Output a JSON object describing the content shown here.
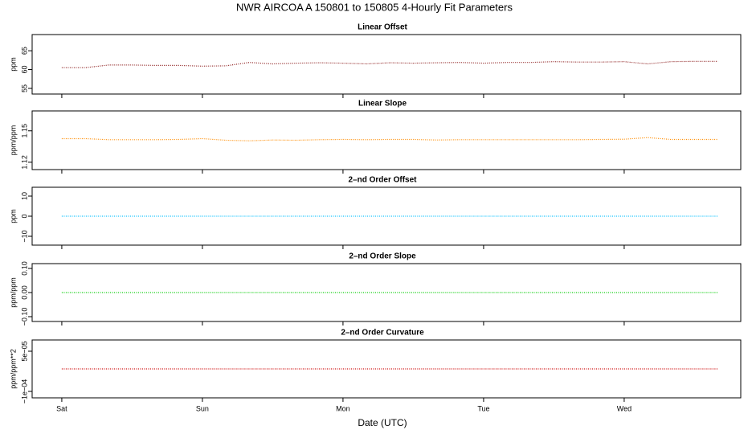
{
  "title": "NWR   AIRCOA A   150801 to 150805   4-Hourly Fit Parameters",
  "x_label": "Date (UTC)",
  "x": [
    0,
    0.167,
    0.333,
    0.5,
    0.667,
    0.833,
    1,
    1.167,
    1.333,
    1.5,
    1.667,
    1.833,
    2,
    2.167,
    2.333,
    2.5,
    2.667,
    2.833,
    3,
    3.167,
    3.333,
    3.5,
    3.667,
    3.833,
    4,
    4.167,
    4.333,
    4.5,
    4.667
  ],
  "xlim": [
    -0.211,
    4.829
  ],
  "xticks": [
    {
      "value": 0,
      "label": "Sat"
    },
    {
      "value": 1,
      "label": "Sun"
    },
    {
      "value": 2,
      "label": "Mon"
    },
    {
      "value": 3,
      "label": "Tue"
    },
    {
      "value": 4,
      "label": "Wed"
    }
  ],
  "chart_data": [
    {
      "type": "line",
      "title": "Linear Offset",
      "y_label": "ppm",
      "color": "#8b1a1a",
      "values": [
        60.5,
        60.5,
        61.2,
        61.2,
        61.1,
        61.1,
        60.9,
        61.0,
        61.9,
        61.5,
        61.7,
        61.8,
        61.7,
        61.5,
        61.8,
        61.7,
        61.8,
        61.9,
        61.7,
        61.9,
        61.9,
        62.1,
        62.0,
        62.0,
        62.1,
        61.5,
        62.1,
        62.2,
        62.2
      ],
      "ylim": [
        53.5,
        69.3
      ],
      "yticks": [
        55,
        60,
        65
      ]
    },
    {
      "type": "line",
      "title": "Linear Slope",
      "y_label": "ppm/ppm",
      "color": "#ff8c00",
      "values": [
        1.1425,
        1.1425,
        1.1415,
        1.1415,
        1.1415,
        1.1418,
        1.1425,
        1.141,
        1.1405,
        1.1412,
        1.141,
        1.1415,
        1.1418,
        1.1415,
        1.1418,
        1.1418,
        1.1412,
        1.1415,
        1.1415,
        1.1415,
        1.1415,
        1.1415,
        1.1415,
        1.1418,
        1.142,
        1.1435,
        1.1418,
        1.1418,
        1.1418
      ],
      "ylim": [
        1.113,
        1.169
      ],
      "yticks": [
        1.12,
        1.15
      ]
    },
    {
      "type": "line",
      "title": "2–nd Order Offset",
      "y_label": "ppm",
      "color": "#00bfff",
      "values": [
        0,
        0,
        0,
        0,
        0,
        0,
        0,
        0,
        0,
        0,
        0,
        0,
        0,
        0,
        0,
        0,
        0,
        0,
        0,
        0,
        0,
        0,
        0,
        0,
        0,
        0,
        0,
        0,
        0
      ],
      "ylim": [
        -14.4,
        14.4
      ],
      "yticks": [
        {
          "value": -10,
          "label": "−10"
        },
        0,
        10
      ]
    },
    {
      "type": "line",
      "title": "2–nd Order Slope",
      "y_label": "ppm/ppm",
      "color": "#00cc00",
      "values": [
        0,
        0,
        0,
        0,
        0,
        0,
        0,
        0,
        0,
        0,
        0,
        0,
        0,
        0,
        0,
        0,
        0,
        0,
        0,
        0,
        0,
        0,
        0,
        0,
        0,
        0,
        0,
        0,
        0
      ],
      "ylim": [
        -0.12,
        0.12
      ],
      "yticks": [
        {
          "value": -0.1,
          "label": "−0.10"
        },
        {
          "value": 0,
          "label": "0.00"
        },
        {
          "value": 0.1,
          "label": "0.10"
        }
      ]
    },
    {
      "type": "line",
      "title": "2–nd Order Curvature",
      "y_label": "ppm/ppm**2",
      "color": "#cc0000",
      "values": [
        -1.6e-05,
        -1.6e-05,
        -1.6e-05,
        -1.6e-05,
        -1.6e-05,
        -1.6e-05,
        -1.6e-05,
        -1.6e-05,
        -1.6e-05,
        -1.6e-05,
        -1.6e-05,
        -1.6e-05,
        -1.6e-05,
        -1.6e-05,
        -1.6e-05,
        -1.6e-05,
        -1.6e-05,
        -1.6e-05,
        -1.6e-05,
        -1.6e-05,
        -1.6e-05,
        -1.6e-05,
        -1.6e-05,
        -1.6e-05,
        -1.6e-05,
        -1.6e-05,
        -1.6e-05,
        -1.6e-05,
        -1.6e-05
      ],
      "ylim": [
        -0.000124,
        9.2e-05
      ],
      "yticks": [
        {
          "value": -0.0001,
          "label": "−1e−04"
        },
        {
          "value": 5e-05,
          "label": "5e−05"
        }
      ]
    }
  ]
}
